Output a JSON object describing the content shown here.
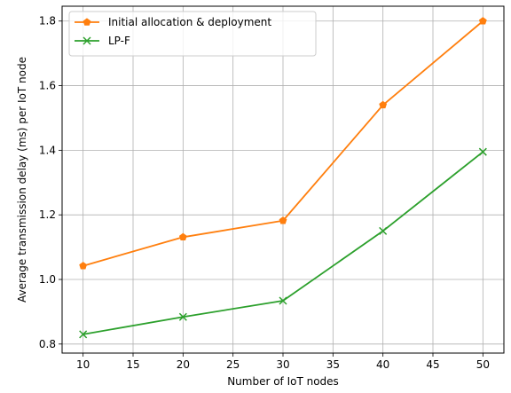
{
  "chart_data": {
    "type": "line",
    "xlabel": "Number of IoT nodes",
    "ylabel": "Average transmission delay (ms) per IoT node",
    "xlim": [
      7.9,
      52.1
    ],
    "ylim": [
      0.772,
      1.846
    ],
    "xticks": [
      10,
      15,
      20,
      25,
      30,
      35,
      40,
      45,
      50
    ],
    "yticks": [
      0.8,
      1.0,
      1.2,
      1.4,
      1.6,
      1.8
    ],
    "ytick_labels": [
      "0.8",
      "1.0",
      "1.2",
      "1.4",
      "1.6",
      "1.8"
    ],
    "grid": true,
    "legend_position": "upper-left",
    "x": [
      10,
      20,
      30,
      40,
      50
    ],
    "series": [
      {
        "name": "Initial allocation & deployment",
        "values": [
          1.042,
          1.131,
          1.182,
          1.54,
          1.8
        ],
        "color": "#ff7f0e",
        "marker": "pentagon"
      },
      {
        "name": "LP-F",
        "values": [
          0.83,
          0.884,
          0.934,
          1.15,
          1.395
        ],
        "color": "#2ca02c",
        "marker": "x"
      }
    ]
  }
}
